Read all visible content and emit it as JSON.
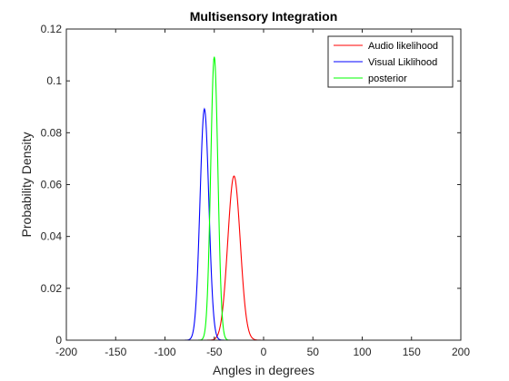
{
  "chart_data": {
    "type": "line",
    "title": "Multisensory Integration",
    "xlabel": "Angles in degrees",
    "ylabel": "Probability Density",
    "xlim": [
      -200,
      200
    ],
    "ylim": [
      0,
      0.12
    ],
    "xticks": [
      -200,
      -150,
      -100,
      -50,
      0,
      50,
      100,
      150,
      200
    ],
    "yticks": [
      0,
      0.02,
      0.04,
      0.06,
      0.08,
      0.1,
      0.12
    ],
    "xtick_labels": [
      "-200",
      "-150",
      "-100",
      "-50",
      "0",
      "50",
      "100",
      "150",
      "200"
    ],
    "ytick_labels": [
      "0",
      "0.02",
      "0.04",
      "0.06",
      "0.08",
      "0.1",
      "0.12"
    ],
    "x_range": [
      -180,
      180
    ],
    "legend_position": "top-right",
    "series": [
      {
        "name": "Audio likelihood",
        "color": "#ff0000",
        "distribution": "gaussian",
        "mean": -30,
        "peak": 0.0633
      },
      {
        "name": "Visual Liklihood",
        "color": "#0000ff",
        "distribution": "gaussian",
        "mean": -60,
        "peak": 0.0892
      },
      {
        "name": "posterior",
        "color": "#00ff00",
        "distribution": "gaussian",
        "mean": -50,
        "peak": 0.1093
      }
    ]
  }
}
